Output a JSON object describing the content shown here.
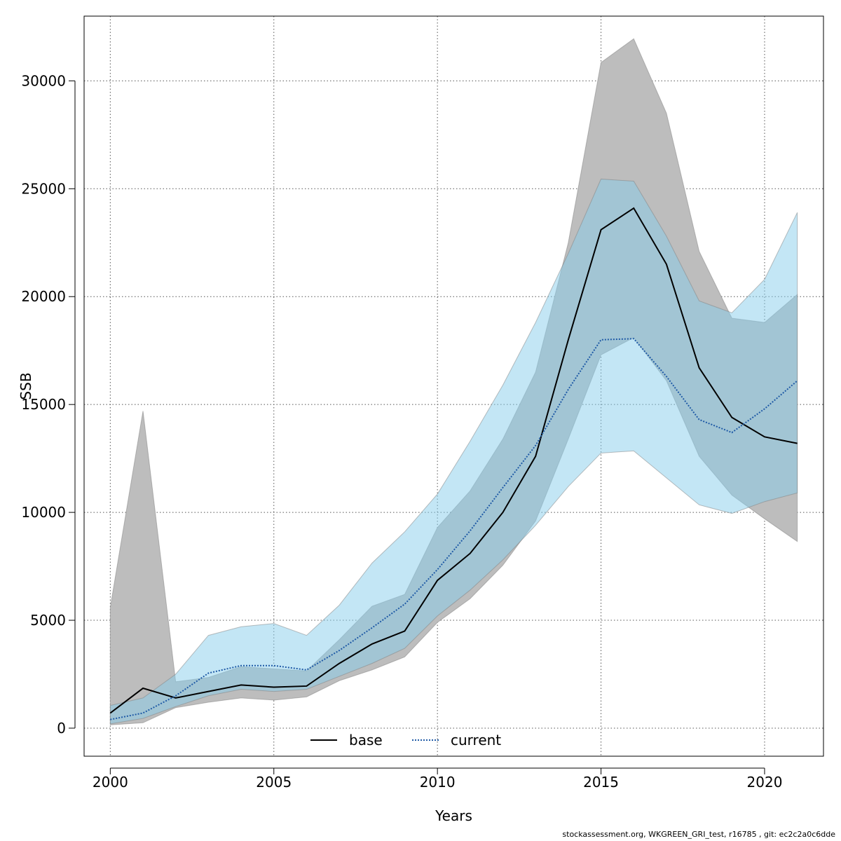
{
  "chart_data": {
    "type": "line",
    "xlabel": "Years",
    "ylabel": "SSB",
    "xlim": [
      1999.2,
      2021.8
    ],
    "ylim": [
      -1300,
      33000
    ],
    "x_ticks": [
      2000,
      2005,
      2010,
      2015,
      2020
    ],
    "y_ticks": [
      0,
      5000,
      10000,
      15000,
      20000,
      25000,
      30000
    ],
    "grid": true,
    "legend": {
      "placement": "bottom-center"
    },
    "x": [
      2000,
      2001,
      2002,
      2003,
      2004,
      2005,
      2006,
      2007,
      2008,
      2009,
      2010,
      2011,
      2012,
      2013,
      2014,
      2015,
      2016,
      2017,
      2018,
      2019,
      2020,
      2021
    ],
    "series": [
      {
        "name": "base",
        "line_color": "#000000",
        "line_style": "solid",
        "band_color": "#bdbdbd",
        "values": [
          700,
          1850,
          1400,
          1700,
          2000,
          1900,
          1950,
          3000,
          3900,
          4500,
          6850,
          8100,
          10000,
          12600,
          18000,
          23100,
          24100,
          21500,
          16700,
          14400,
          13500,
          13200
        ],
        "lower": [
          150,
          250,
          950,
          1200,
          1400,
          1300,
          1450,
          2200,
          2700,
          3300,
          4900,
          6000,
          7550,
          9600,
          13400,
          17300,
          18100,
          16100,
          12600,
          10800,
          9700,
          8650
        ],
        "upper": [
          5600,
          14700,
          2150,
          2350,
          2850,
          2750,
          2650,
          4100,
          5650,
          6200,
          9300,
          11000,
          13400,
          16500,
          22500,
          30850,
          31950,
          28500,
          22100,
          19000,
          18800,
          20100
        ]
      },
      {
        "name": "current",
        "line_color": "#1f5aa6",
        "line_style": "dotted",
        "band_color": "#87ceeb",
        "values": [
          400,
          700,
          1500,
          2550,
          2900,
          2900,
          2700,
          3600,
          4650,
          5750,
          7350,
          9150,
          11150,
          13100,
          15700,
          18000,
          18050,
          16300,
          14300,
          13700,
          14800,
          16100
        ],
        "lower": [
          200,
          450,
          1000,
          1500,
          1800,
          1700,
          1800,
          2400,
          3000,
          3700,
          5200,
          6400,
          7800,
          9400,
          11200,
          12750,
          12850,
          11600,
          10350,
          9950,
          10500,
          10900
        ],
        "upper": [
          1050,
          1400,
          2500,
          4300,
          4700,
          4850,
          4300,
          5700,
          7650,
          9100,
          10850,
          13300,
          15900,
          18800,
          22000,
          25450,
          25350,
          22800,
          19800,
          19250,
          20800,
          23900
        ]
      }
    ]
  },
  "footer": {
    "text": "stockassessment.org, WKGREEN_GRI_test, r16785 , git: ec2c2a0c6dde"
  }
}
